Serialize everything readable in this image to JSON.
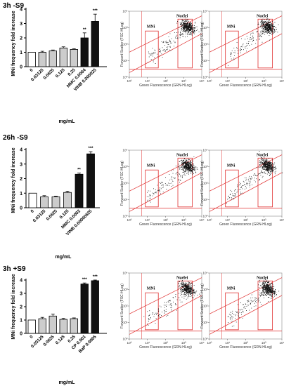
{
  "chart_data": [
    {
      "type": "bar",
      "panel_label": "3h -S9",
      "ylabel": "MNi frequency fold increase",
      "xlabel": "mg/mL",
      "yticks": [
        0,
        1,
        2,
        3,
        4
      ],
      "ylim": [
        0,
        4
      ],
      "categories": [
        "0",
        "0.03125",
        "0.0625",
        "0.125",
        "0.25",
        "MMC 0.0004",
        "VINB 0.000025"
      ],
      "values": [
        1.0,
        1.0,
        1.1,
        1.3,
        1.2,
        2.0,
        3.15
      ],
      "errors": [
        0.0,
        0.07,
        0.06,
        0.08,
        0.05,
        0.35,
        0.5
      ],
      "significance": [
        "",
        "",
        "",
        "",
        "",
        "**",
        "***"
      ],
      "bar_fills": [
        "#ffffff",
        "#cccccc",
        "#cccccc",
        "#cccccc",
        "#cccccc",
        "#111111",
        "#111111"
      ]
    },
    {
      "type": "bar",
      "panel_label": "26h -S9",
      "ylabel": "MNi frequency fold increase",
      "xlabel": "mg/mL",
      "yticks": [
        0,
        1,
        2,
        3,
        4
      ],
      "ylim": [
        0,
        4
      ],
      "categories": [
        "0",
        "0.03125",
        "0.0625",
        "0.125",
        "MMC 0.0002",
        "VINB 0.00000625"
      ],
      "values": [
        1.0,
        0.75,
        0.75,
        1.05,
        2.3,
        3.7
      ],
      "errors": [
        0.0,
        0.08,
        0.05,
        0.08,
        0.08,
        0.15
      ],
      "significance": [
        "",
        "",
        "",
        "",
        "**",
        "***"
      ],
      "bar_fills": [
        "#ffffff",
        "#cccccc",
        "#cccccc",
        "#cccccc",
        "#111111",
        "#111111"
      ]
    },
    {
      "type": "bar",
      "panel_label": "3h +S9",
      "ylabel": "MNi frequency fold increase",
      "xlabel": "mg/mL",
      "yticks": [
        0,
        1,
        2,
        3,
        4
      ],
      "ylim": [
        0,
        4
      ],
      "categories": [
        "0",
        "0.03125",
        "0.0625",
        "0.125",
        "0.25",
        "CP 0.001",
        "BaP 0.0005"
      ],
      "values": [
        1.0,
        1.1,
        1.3,
        1.05,
        1.1,
        3.7,
        3.95
      ],
      "errors": [
        0.0,
        0.1,
        0.15,
        0.07,
        0.06,
        0.08,
        0.05
      ],
      "significance": [
        "",
        "",
        "",
        "",
        "",
        "***",
        "***"
      ],
      "bar_fills": [
        "#ffffff",
        "#cccccc",
        "#cccccc",
        "#cccccc",
        "#cccccc",
        "#111111",
        "#111111"
      ]
    },
    {
      "type": "scatter",
      "description_kind": "flow-cytometry",
      "xlabel": "Green Fluorescence (GRN-HLog)",
      "ylabel": "Forward Scatter (FSC-HLog)",
      "xscale": "log",
      "yscale": "log",
      "xlim": [
        1,
        10000
      ],
      "ylim": [
        1,
        10000
      ],
      "xticks": [
        "10⁰",
        "10¹",
        "10²",
        "10³",
        "10⁴"
      ],
      "yticks": [
        "10⁰",
        "10¹",
        "10²",
        "10³",
        "10⁴"
      ],
      "gates": [
        "MNi",
        "Nuclei"
      ],
      "plots_per_row": 2,
      "rows": 3
    }
  ]
}
